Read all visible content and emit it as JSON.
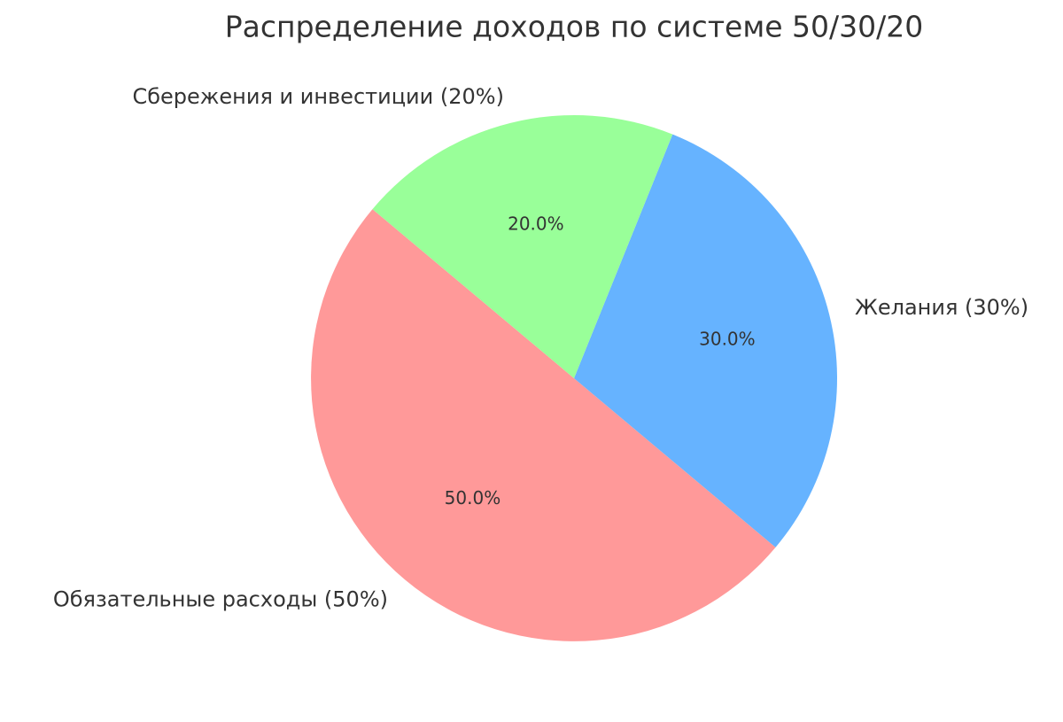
{
  "chart_data": {
    "type": "pie",
    "title": "Распределение доходов по системе 50/30/20",
    "categories": [
      "Обязательные расходы (50%)",
      "Желания (30%)",
      "Сбережения и инвестиции (20%)"
    ],
    "values": [
      50,
      30,
      20
    ],
    "value_labels": [
      "50.0%",
      "30.0%",
      "20.0%"
    ],
    "colors": [
      "#ff9999",
      "#66b3ff",
      "#99ff99"
    ]
  }
}
